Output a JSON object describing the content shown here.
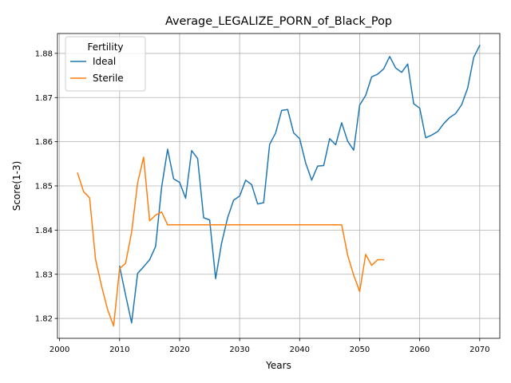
{
  "chart_data": {
    "type": "line",
    "title": "Average_LEGALIZE_PORN_of_Black_Pop",
    "xlabel": "Years",
    "ylabel": "Score(1-3)",
    "xlim": [
      1999.65,
      2073.35
    ],
    "ylim": [
      1.8155,
      1.8845
    ],
    "xticks": [
      2000,
      2010,
      2020,
      2030,
      2040,
      2050,
      2060,
      2070
    ],
    "yticks": [
      1.82,
      1.83,
      1.84,
      1.85,
      1.86,
      1.87,
      1.88
    ],
    "ytick_labels": [
      "1.82",
      "1.83",
      "1.84",
      "1.85",
      "1.86",
      "1.87",
      "1.88"
    ],
    "grid": true,
    "legend": {
      "title": "Fertility",
      "position": "top-left"
    },
    "series": [
      {
        "name": "Ideal",
        "color": "#1f77b4",
        "x": [
          2010,
          2011,
          2012,
          2013,
          2014,
          2015,
          2016,
          2017,
          2018,
          2019,
          2020,
          2021,
          2022,
          2023,
          2024,
          2025,
          2026,
          2027,
          2028,
          2029,
          2030,
          2031,
          2032,
          2033,
          2034,
          2035,
          2036,
          2037,
          2038,
          2039,
          2040,
          2041,
          2042,
          2043,
          2044,
          2045,
          2046,
          2047,
          2048,
          2049,
          2050,
          2051,
          2052,
          2053,
          2054,
          2055,
          2056,
          2057,
          2058,
          2059,
          2060,
          2061,
          2062,
          2063,
          2064,
          2065,
          2066,
          2067,
          2068,
          2069,
          2070
        ],
        "y": [
          1.8318,
          1.8253,
          1.819,
          1.8302,
          1.8317,
          1.8333,
          1.8363,
          1.8497,
          1.8583,
          1.8516,
          1.8508,
          1.8472,
          1.858,
          1.8562,
          1.8428,
          1.8423,
          1.829,
          1.8371,
          1.8428,
          1.8468,
          1.8477,
          1.8513,
          1.8503,
          1.8459,
          1.8462,
          1.8594,
          1.862,
          1.8671,
          1.8673,
          1.862,
          1.8607,
          1.8552,
          1.8513,
          1.8545,
          1.8546,
          1.8607,
          1.8593,
          1.8643,
          1.8601,
          1.8581,
          1.8683,
          1.8705,
          1.8747,
          1.8753,
          1.8765,
          1.8793,
          1.8767,
          1.8757,
          1.8776,
          1.8686,
          1.8676,
          1.8609,
          1.8615,
          1.8623,
          1.8641,
          1.8655,
          1.8664,
          1.8684,
          1.8722,
          1.8791,
          1.8818
        ]
      },
      {
        "name": "Sterile",
        "color": "#ff7f0e",
        "x": [
          2003,
          2004,
          2005,
          2006,
          2007,
          2008,
          2009,
          2010,
          2011,
          2012,
          2013,
          2014,
          2015,
          2016,
          2017,
          2018,
          2019,
          2020,
          2021,
          2022,
          2023,
          2024,
          2025,
          2026,
          2027,
          2028,
          2029,
          2030,
          2031,
          2032,
          2033,
          2034,
          2035,
          2036,
          2037,
          2038,
          2039,
          2040,
          2041,
          2042,
          2043,
          2044,
          2045,
          2046,
          2047,
          2048,
          2049,
          2050,
          2051,
          2052,
          2053,
          2054
        ],
        "y": [
          1.8529,
          1.8487,
          1.8473,
          1.8333,
          1.8273,
          1.822,
          1.8183,
          1.8313,
          1.8325,
          1.8395,
          1.8507,
          1.8565,
          1.8421,
          1.8434,
          1.8441,
          1.8412,
          1.8412,
          1.8412,
          1.8412,
          1.8412,
          1.8412,
          1.8412,
          1.8412,
          1.8412,
          1.8412,
          1.8412,
          1.8412,
          1.8412,
          1.8412,
          1.8412,
          1.8412,
          1.8412,
          1.8412,
          1.8412,
          1.8412,
          1.8412,
          1.8412,
          1.8412,
          1.8412,
          1.8412,
          1.8412,
          1.8412,
          1.8412,
          1.8412,
          1.8412,
          1.8343,
          1.8298,
          1.8261,
          1.8345,
          1.832,
          1.8333,
          1.8333
        ]
      }
    ]
  }
}
